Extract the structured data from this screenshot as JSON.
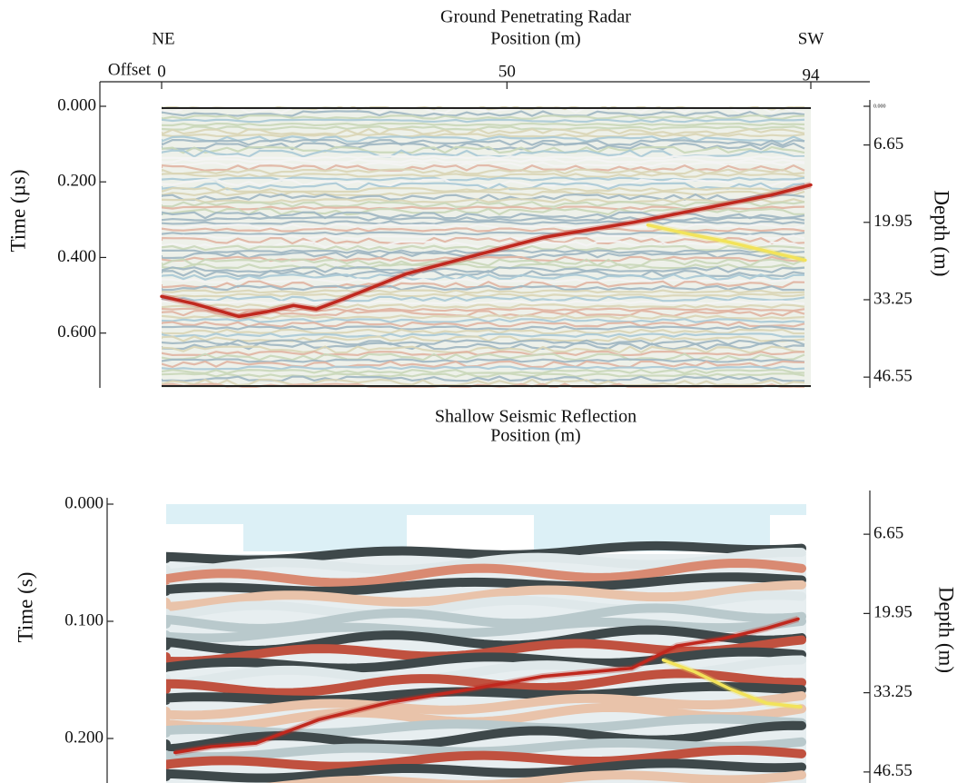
{
  "chart_data": [
    {
      "type": "line",
      "title": "Ground Penetrating Radar",
      "x_label": "Position (m)",
      "y_label": "Time (µs)",
      "y2_label": "Depth (m)",
      "annotations": [
        "NE",
        "SW",
        "Offset"
      ],
      "xlim": [
        0,
        94
      ],
      "xticks": [
        0,
        50,
        94
      ],
      "ylim": [
        0,
        0.745
      ],
      "yticks": [
        {
          "value": 0,
          "label": "0.000"
        },
        {
          "value": 0.2,
          "label": "0.200"
        },
        {
          "value": 0.4,
          "label": "0.400"
        },
        {
          "value": 0.6,
          "label": "0.600"
        }
      ],
      "y2lim": [
        0,
        48.4
      ],
      "y2ticks": [
        {
          "value": 0,
          "label": "0.000"
        },
        6.65,
        19.95,
        33.25,
        46.55
      ],
      "series": [
        {
          "color": "#c0281e",
          "x": [
            0,
            4.6,
            11.2,
            15.1,
            19.1,
            22.4,
            26.3,
            35.5,
            44.7,
            55.3,
            68.4,
            81.6,
            88.2,
            94
          ],
          "values": [
            0.503,
            0.522,
            0.556,
            0.544,
            0.527,
            0.537,
            0.51,
            0.443,
            0.398,
            0.347,
            0.307,
            0.259,
            0.235,
            0.208
          ]
        },
        {
          "color": "#f2e35a",
          "x": [
            70.4,
            76.3,
            81.6,
            88.2,
            93.2
          ],
          "values": [
            0.314,
            0.338,
            0.357,
            0.386,
            0.407
          ]
        }
      ]
    },
    {
      "type": "line",
      "title": "Shallow Seismic Reflection",
      "x_label": "Position (m)",
      "y_label": "Time (s)",
      "y2_label": "Depth (m)",
      "xlim": [
        0,
        94
      ],
      "ylim": [
        0,
        0.238
      ],
      "yticks": [
        {
          "value": 0,
          "label": "0.000"
        },
        {
          "value": 0.1,
          "label": "0.100"
        },
        {
          "value": 0.2,
          "label": "0.200"
        }
      ],
      "y2lim": [
        1.6,
        48.4
      ],
      "y2ticks": [
        6.65,
        19.95,
        33.25,
        46.55
      ],
      "series": [
        {
          "color": "#c0281e",
          "x": [
            1.3,
            6.6,
            13.2,
            22.4,
            32.9,
            44.7,
            55.3,
            68.4,
            75.0,
            81.6,
            88.2,
            92.8
          ],
          "values": [
            0.212,
            0.207,
            0.204,
            0.184,
            0.169,
            0.158,
            0.147,
            0.14,
            0.121,
            0.115,
            0.106,
            0.098
          ]
        },
        {
          "color": "#f2e35a",
          "x": [
            73.0,
            77.6,
            82.9,
            88.2,
            93.2
          ],
          "values": [
            0.133,
            0.143,
            0.158,
            0.17,
            0.173
          ]
        }
      ]
    }
  ]
}
